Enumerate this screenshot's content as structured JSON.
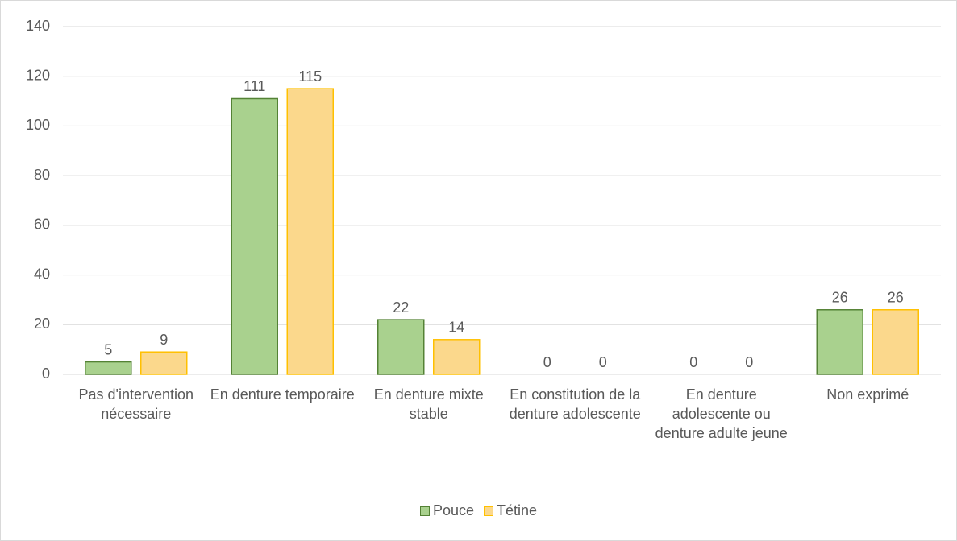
{
  "chart_data": {
    "type": "bar",
    "categories": [
      "Pas d'intervention nécessaire",
      "En denture temporaire",
      "En denture mixte stable",
      "En constitution de la denture adolescente",
      "En denture adolescente ou denture adulte jeune",
      "Non exprimé"
    ],
    "series": [
      {
        "name": "Pouce",
        "color": "#a9d18e",
        "edgecolor": "#548235",
        "values": [
          5,
          111,
          22,
          0,
          0,
          26
        ]
      },
      {
        "name": "Tétine",
        "color": "#fbd88c",
        "edgecolor": "#ffc000",
        "values": [
          9,
          115,
          14,
          0,
          0,
          26
        ]
      }
    ],
    "ylim": [
      0,
      140
    ],
    "yticks": [
      0,
      20,
      40,
      60,
      80,
      100,
      120,
      140
    ],
    "grid": true,
    "legend": "bottom"
  }
}
